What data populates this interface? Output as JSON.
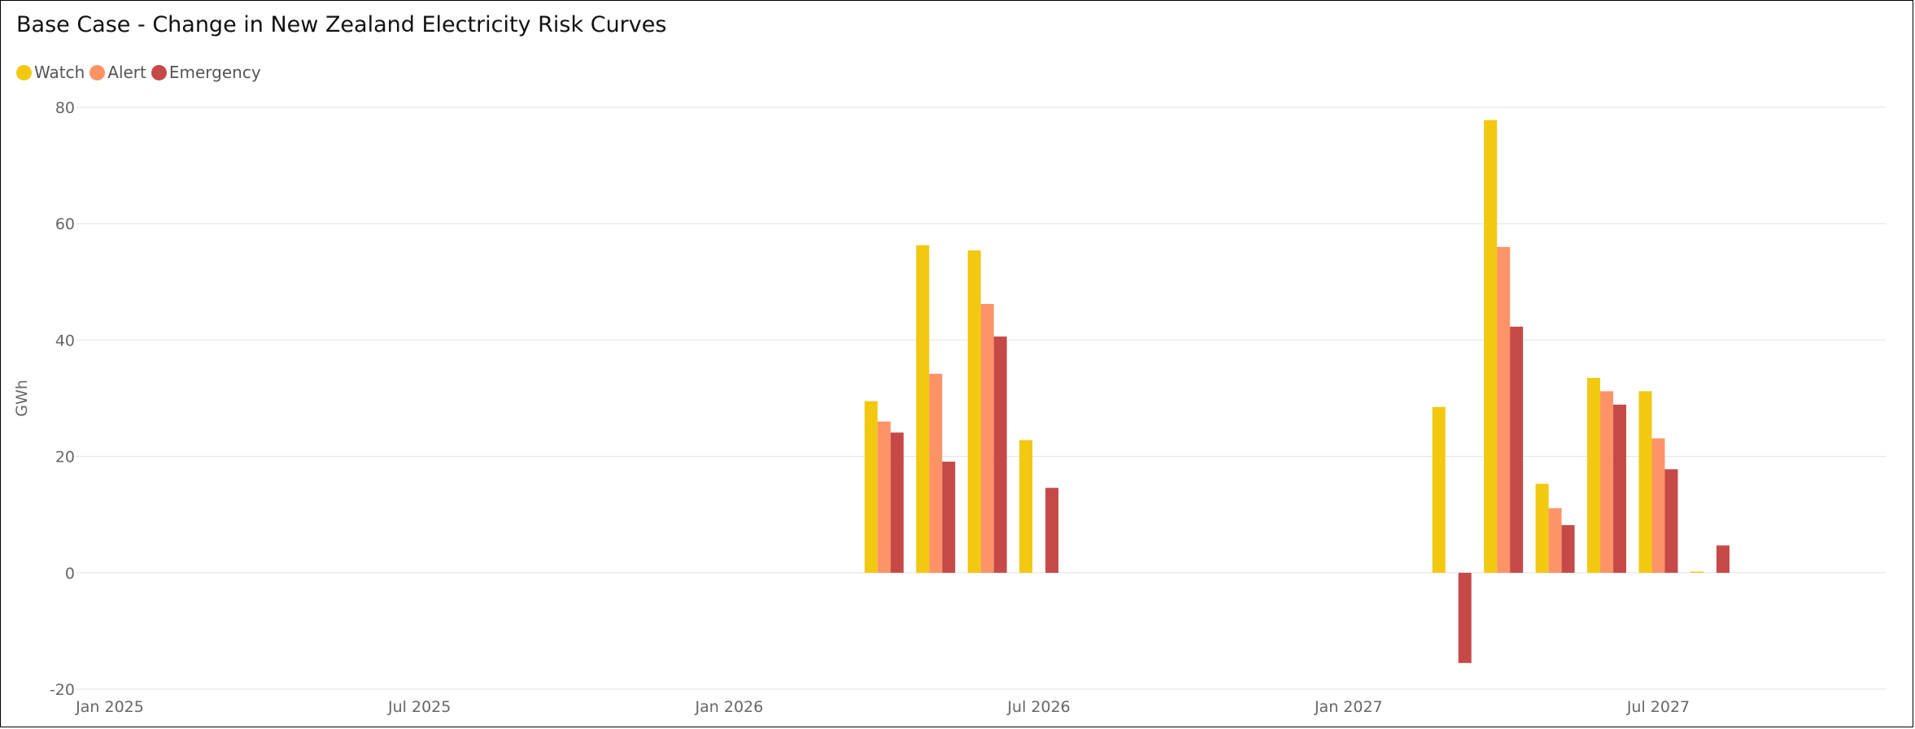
{
  "chart_data": {
    "type": "bar",
    "title": "Base Case - Change in New Zealand Electricity Risk Curves",
    "xlabel": "",
    "ylabel": "GWh",
    "ylim": [
      -20,
      80
    ],
    "yticks": [
      "80",
      "60",
      "40",
      "20",
      "0",
      "-20"
    ],
    "xticks": [
      "Jan 2025",
      "Jul 2025",
      "Jan 2026",
      "Jul 2026",
      "Jan 2027",
      "Jul 2027"
    ],
    "grid": true,
    "legend_position": "top-left",
    "colors": {
      "Watch": "#F2C811",
      "Alert": "#FD9367",
      "Emergency": "#C54A47"
    },
    "categories": [
      "Apr 2026",
      "May 2026",
      "Jun 2026",
      "Jul 2026",
      "Mar 2027",
      "Apr 2027",
      "May 2027",
      "Jun 2027",
      "Jul 2027",
      "Aug 2027"
    ],
    "series": [
      {
        "name": "Watch",
        "values": [
          29.5,
          56.3,
          55.4,
          22.8,
          28.5,
          77.8,
          15.3,
          33.5,
          31.2,
          0.2
        ]
      },
      {
        "name": "Alert",
        "values": [
          26.0,
          34.2,
          46.2,
          0,
          0,
          56.0,
          11.1,
          31.2,
          23.1,
          0
        ]
      },
      {
        "name": "Emergency",
        "values": [
          24.1,
          19.1,
          40.6,
          14.6,
          -15.5,
          42.3,
          8.2,
          28.9,
          17.8,
          4.7
        ]
      }
    ]
  }
}
